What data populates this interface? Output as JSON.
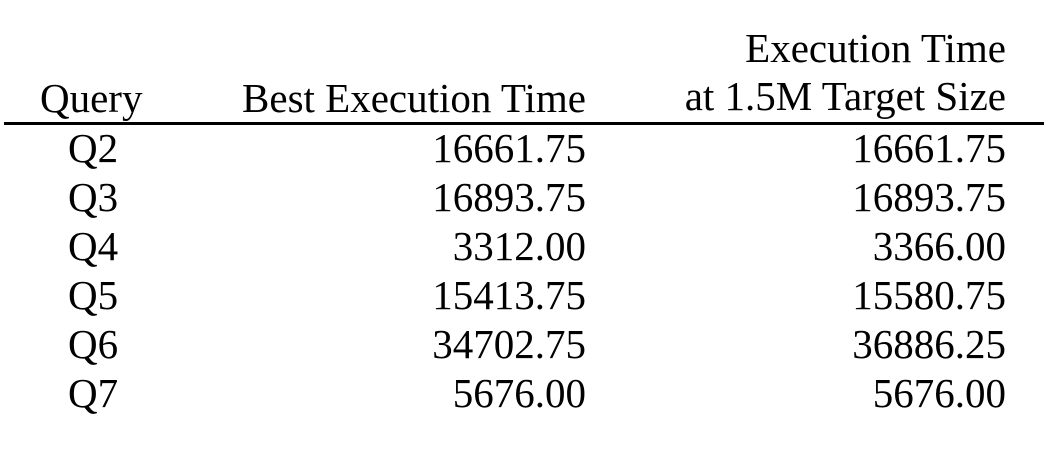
{
  "table": {
    "headers": {
      "query": "Query",
      "best": "Best Execution Time",
      "exec_line1": "Execution Time",
      "exec_line2": "at 1.5M Target Size"
    },
    "rows": [
      {
        "query": "Q2",
        "best": "16661.75",
        "exec": "16661.75"
      },
      {
        "query": "Q3",
        "best": "16893.75",
        "exec": "16893.75"
      },
      {
        "query": "Q4",
        "best": "3312.00",
        "exec": "3366.00"
      },
      {
        "query": "Q5",
        "best": "15413.75",
        "exec": "15580.75"
      },
      {
        "query": "Q6",
        "best": "34702.75",
        "exec": "36886.25"
      },
      {
        "query": "Q7",
        "best": "5676.00",
        "exec": "5676.00"
      }
    ]
  }
}
